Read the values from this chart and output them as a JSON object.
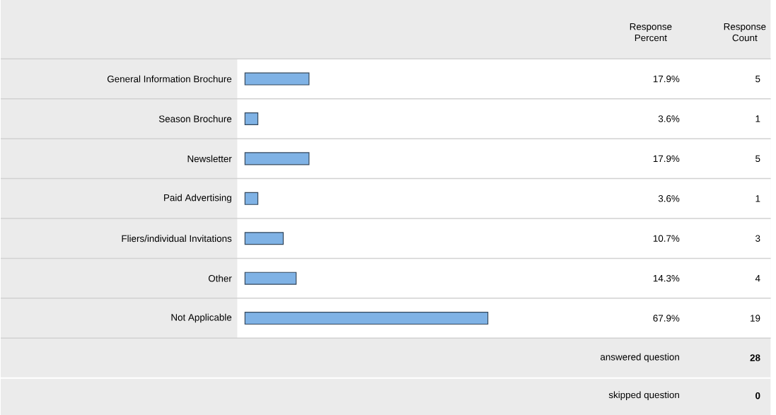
{
  "chart_data": {
    "type": "bar",
    "orientation": "horizontal",
    "categories": [
      "General Information Brochure",
      "Season Brochure",
      "Newsletter",
      "Paid Advertising",
      "Fliers/individual Invitations",
      "Other",
      "Not Applicable"
    ],
    "values": [
      17.9,
      3.6,
      17.9,
      3.6,
      10.7,
      14.3,
      67.9
    ],
    "value_labels": [
      "17.9%",
      "3.6%",
      "17.9%",
      "3.6%",
      "10.7%",
      "14.3%",
      "67.9%"
    ],
    "color": "#7fb2e5",
    "tick_labels": "y",
    "annotations": [
      "Response Percent",
      "Response Count",
      "5",
      "1",
      "5",
      "1",
      "3",
      "4",
      "19",
      "answered question",
      "28",
      "skipped question",
      "0"
    ]
  }
}
